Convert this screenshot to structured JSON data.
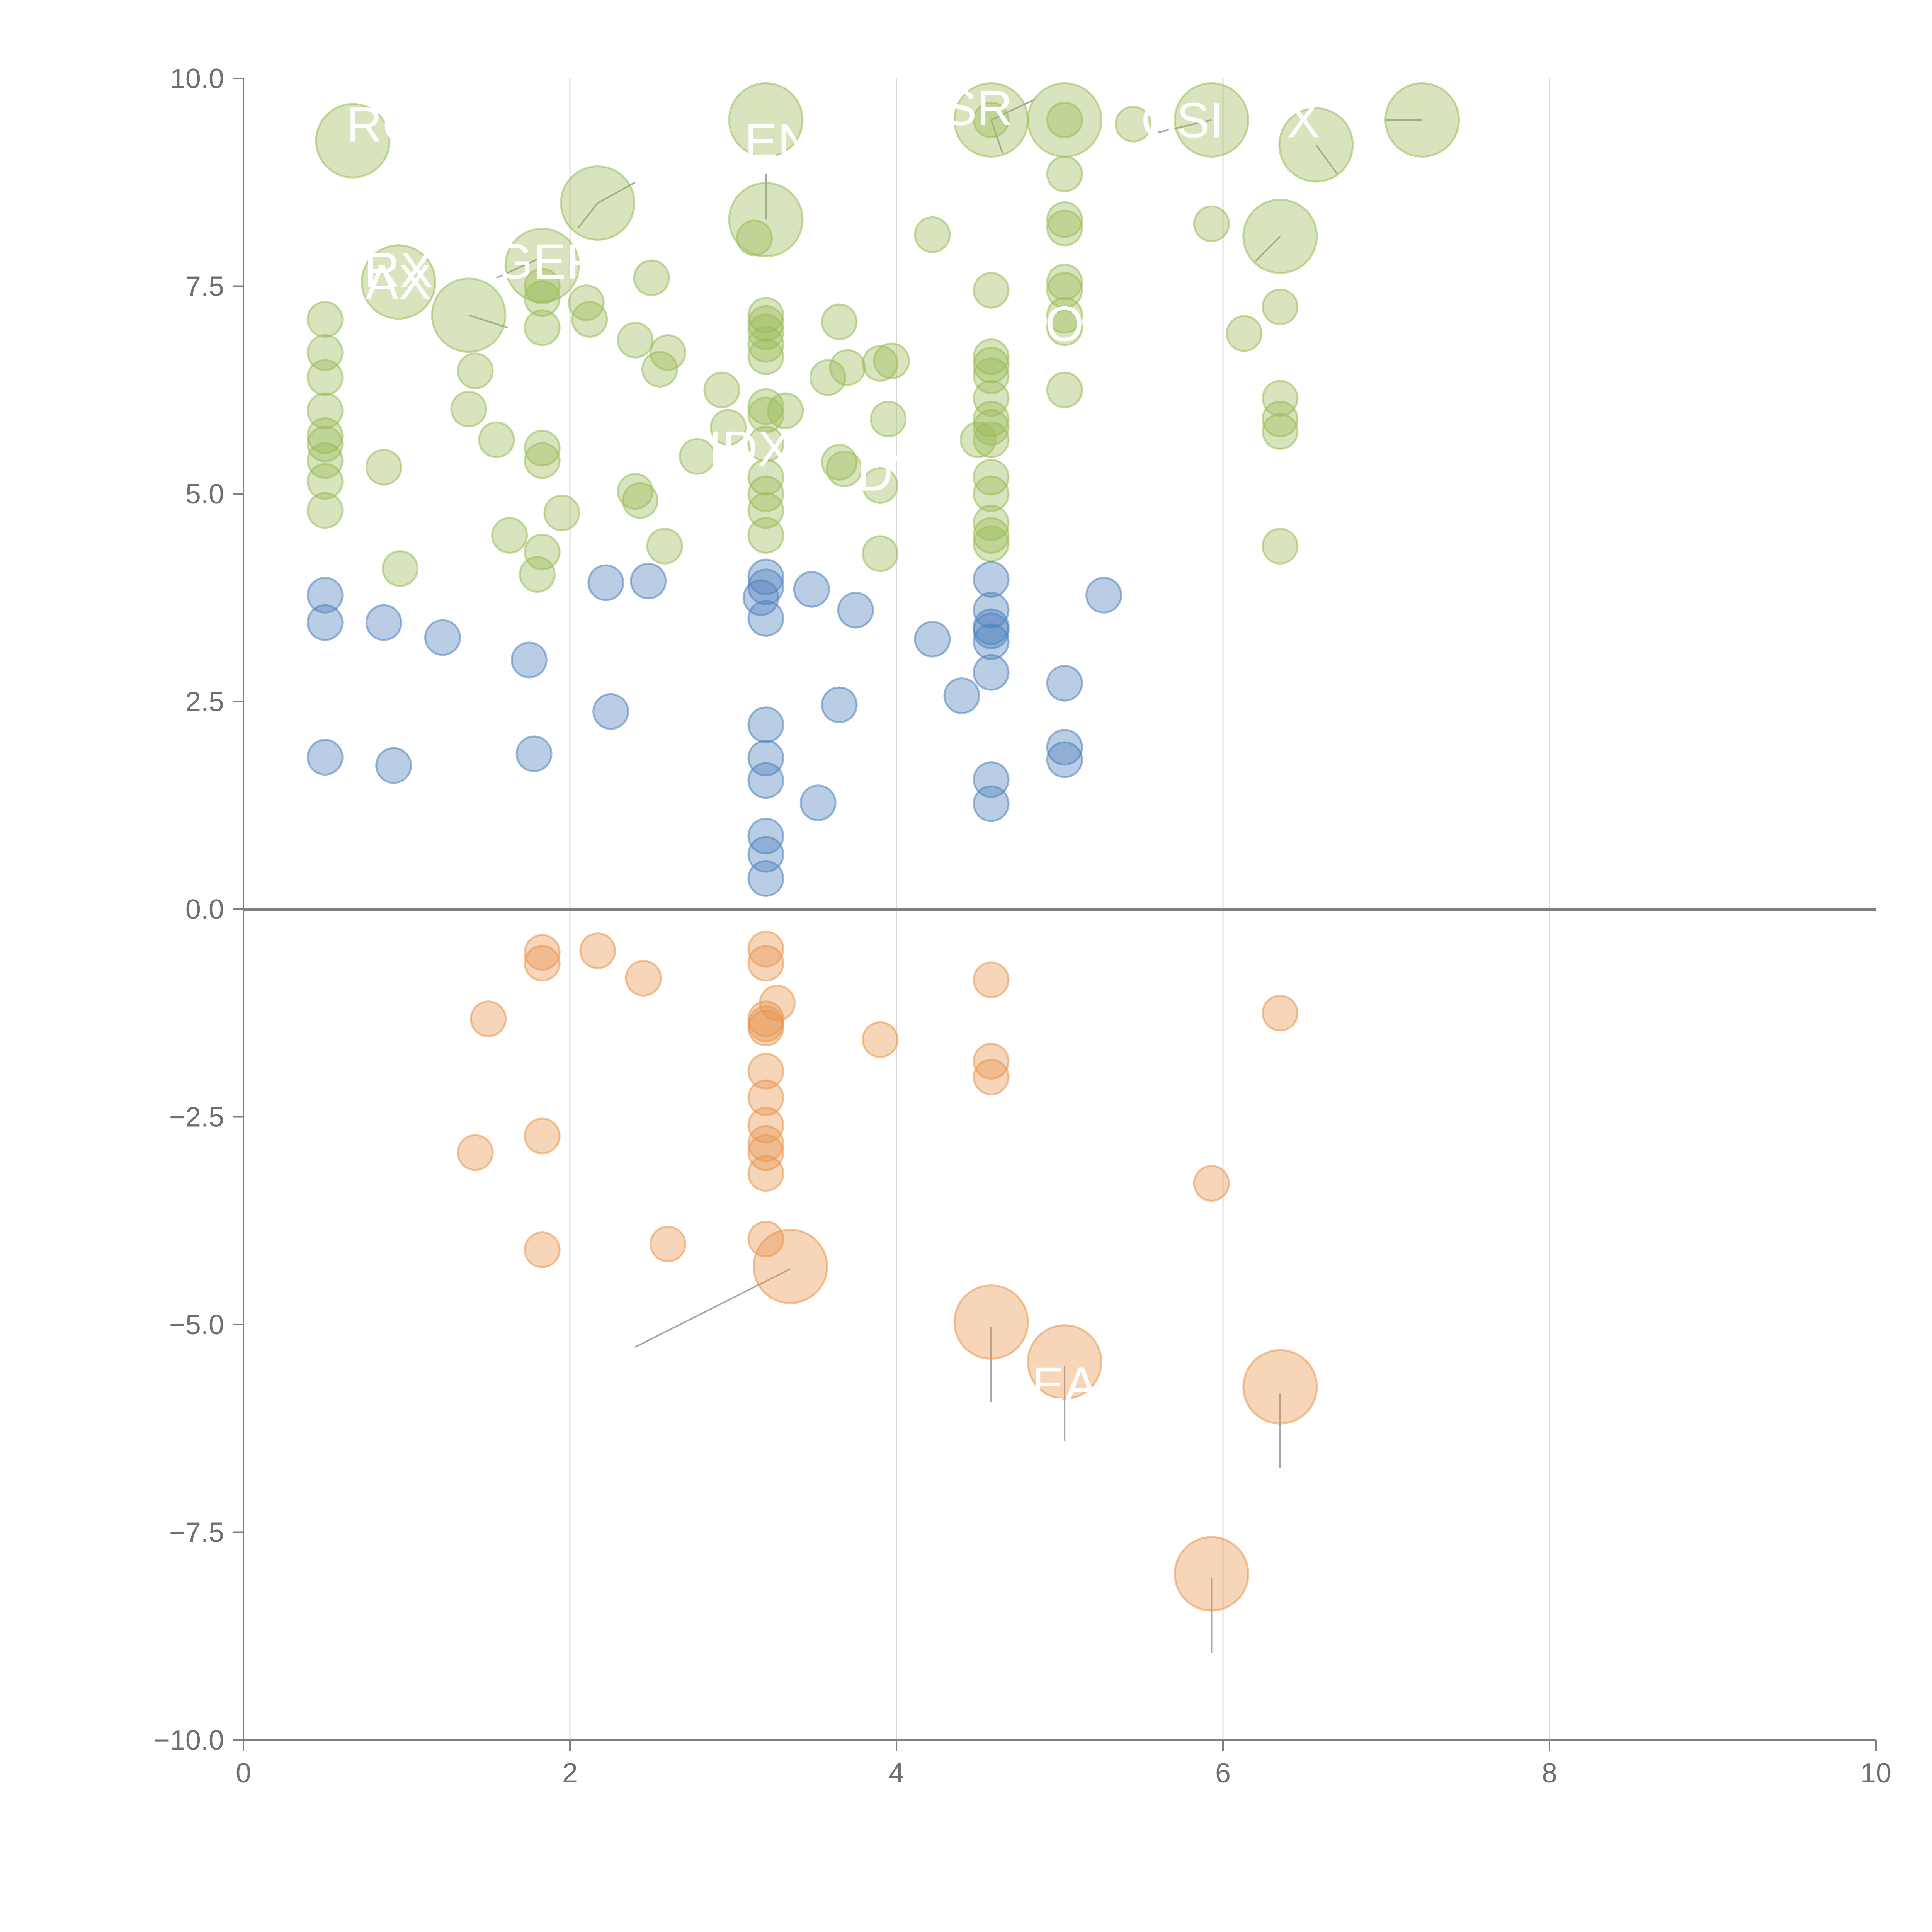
{
  "colors": {
    "green": "#9bbb59",
    "blue": "#4f81bd",
    "orange": "#e8954f",
    "axis": "#7f7f7f",
    "grid": "#d9d9d9",
    "text": "#6f6f6f",
    "label": "#ffffff"
  },
  "chart_data": {
    "type": "scatter",
    "title": "",
    "xlabel": "",
    "ylabel": "",
    "xlim": [
      0,
      10
    ],
    "ylim": [
      -10,
      10
    ],
    "grid": "vertical",
    "xticks": [
      0,
      2,
      4,
      6,
      8,
      10
    ],
    "yticks": [
      10,
      7.5,
      5,
      2.5,
      0,
      -2.5,
      -5,
      -7.5,
      -10
    ],
    "xtick_labels": [
      "0",
      "2",
      "4",
      "6",
      "8",
      "10"
    ],
    "ytick_labels": [
      "10.0",
      "7.5",
      "5.0",
      "2.5",
      "0.0",
      "−2.5",
      "−5.0",
      "−7.5",
      "−10.0"
    ],
    "series": [
      {
        "name": "green",
        "color": "green",
        "points": [
          [
            0.67,
            9.25,
            2
          ],
          [
            0.95,
            7.55,
            2
          ],
          [
            1.38,
            7.15,
            2
          ],
          [
            1.83,
            7.75,
            2
          ],
          [
            2.17,
            8.5,
            2
          ],
          [
            3.2,
            9.5,
            2
          ],
          [
            3.2,
            8.3,
            2
          ],
          [
            4.58,
            9.5,
            2
          ],
          [
            5.03,
            9.5,
            2
          ],
          [
            5.93,
            9.5,
            2
          ],
          [
            6.35,
            8.1,
            2
          ],
          [
            6.57,
            9.2,
            2
          ],
          [
            7.22,
            9.5,
            2
          ],
          [
            5.45,
            9.45,
            1
          ],
          [
            4.58,
            9.5,
            1
          ],
          [
            5.03,
            9.5,
            1
          ],
          [
            5.03,
            8.85,
            1
          ],
          [
            5.03,
            8.3,
            1
          ],
          [
            5.03,
            8.2,
            1
          ],
          [
            5.03,
            7.55,
            1
          ],
          [
            5.03,
            7.45,
            1
          ],
          [
            5.03,
            7.15,
            1
          ],
          [
            5.03,
            7.0,
            1
          ],
          [
            5.03,
            6.25,
            1
          ],
          [
            4.22,
            8.12,
            1
          ],
          [
            5.93,
            8.25,
            1
          ],
          [
            3.13,
            8.08,
            1
          ],
          [
            0.5,
            7.1,
            1
          ],
          [
            0.5,
            6.7,
            1
          ],
          [
            0.5,
            6.4,
            1
          ],
          [
            0.5,
            6.0,
            1
          ],
          [
            0.5,
            5.7,
            1
          ],
          [
            0.5,
            5.6,
            1
          ],
          [
            0.5,
            5.4,
            1
          ],
          [
            0.5,
            5.15,
            1
          ],
          [
            0.5,
            4.8,
            1
          ],
          [
            0.86,
            5.32,
            1
          ],
          [
            0.96,
            4.1,
            1
          ],
          [
            1.38,
            6.02,
            1
          ],
          [
            1.42,
            6.48,
            1
          ],
          [
            1.55,
            5.65,
            1
          ],
          [
            1.63,
            4.5,
            1
          ],
          [
            1.83,
            7.5,
            1
          ],
          [
            1.83,
            7.35,
            1
          ],
          [
            1.83,
            7.0,
            1
          ],
          [
            1.83,
            5.55,
            1
          ],
          [
            1.83,
            5.4,
            1
          ],
          [
            1.83,
            4.3,
            1
          ],
          [
            1.8,
            4.03,
            1
          ],
          [
            1.95,
            4.77,
            1
          ],
          [
            2.1,
            7.3,
            1
          ],
          [
            2.12,
            7.1,
            1
          ],
          [
            2.4,
            6.85,
            1
          ],
          [
            2.5,
            7.6,
            1
          ],
          [
            2.55,
            6.5,
            1
          ],
          [
            2.6,
            6.7,
            1
          ],
          [
            2.58,
            4.37,
            1
          ],
          [
            2.4,
            5.03,
            1
          ],
          [
            2.43,
            4.92,
            1
          ],
          [
            2.93,
            6.25,
            1
          ],
          [
            2.97,
            5.8,
            1
          ],
          [
            2.78,
            5.45,
            1
          ],
          [
            3.2,
            7.15,
            1
          ],
          [
            3.2,
            7.05,
            1
          ],
          [
            3.2,
            6.95,
            1
          ],
          [
            3.2,
            6.8,
            1
          ],
          [
            3.2,
            6.65,
            1
          ],
          [
            3.2,
            6.05,
            1
          ],
          [
            3.2,
            5.95,
            1
          ],
          [
            3.32,
            6.0,
            1
          ],
          [
            3.2,
            5.6,
            1
          ],
          [
            3.2,
            5.2,
            1
          ],
          [
            3.2,
            5.0,
            1
          ],
          [
            3.2,
            4.8,
            1
          ],
          [
            3.2,
            4.5,
            1
          ],
          [
            3.58,
            6.4,
            1
          ],
          [
            3.65,
            7.07,
            1
          ],
          [
            3.7,
            6.52,
            1
          ],
          [
            3.9,
            6.57,
            1
          ],
          [
            3.97,
            6.6,
            1
          ],
          [
            3.95,
            5.9,
            1
          ],
          [
            3.65,
            5.38,
            1
          ],
          [
            3.68,
            5.3,
            1
          ],
          [
            3.9,
            5.1,
            1
          ],
          [
            3.9,
            4.28,
            1
          ],
          [
            4.5,
            5.65,
            1
          ],
          [
            4.58,
            7.45,
            1
          ],
          [
            4.58,
            6.65,
            1
          ],
          [
            4.58,
            6.55,
            1
          ],
          [
            4.58,
            6.42,
            1
          ],
          [
            4.58,
            6.15,
            1
          ],
          [
            4.58,
            5.9,
            1
          ],
          [
            4.58,
            5.8,
            1
          ],
          [
            4.58,
            5.65,
            1
          ],
          [
            4.58,
            5.2,
            1
          ],
          [
            4.58,
            5.0,
            1
          ],
          [
            4.58,
            4.65,
            1
          ],
          [
            4.58,
            4.5,
            1
          ],
          [
            4.58,
            4.4,
            1
          ],
          [
            6.13,
            6.93,
            1
          ],
          [
            6.35,
            7.25,
            1
          ],
          [
            6.35,
            6.15,
            1
          ],
          [
            6.35,
            5.9,
            1
          ],
          [
            6.35,
            5.75,
            1
          ],
          [
            6.35,
            4.37,
            1
          ]
        ]
      },
      {
        "name": "blue",
        "color": "blue",
        "points": [
          [
            0.5,
            3.78,
            1
          ],
          [
            0.5,
            3.45,
            1
          ],
          [
            0.5,
            1.83,
            1
          ],
          [
            0.86,
            3.45,
            1
          ],
          [
            0.92,
            1.73,
            1
          ],
          [
            1.22,
            3.27,
            1
          ],
          [
            1.75,
            3.0,
            1
          ],
          [
            1.78,
            1.87,
            1
          ],
          [
            2.22,
            3.93,
            1
          ],
          [
            2.25,
            2.38,
            1
          ],
          [
            2.48,
            3.95,
            1
          ],
          [
            3.2,
            4.0,
            1
          ],
          [
            3.2,
            3.88,
            1
          ],
          [
            3.17,
            3.75,
            1
          ],
          [
            3.2,
            3.5,
            1
          ],
          [
            3.2,
            2.22,
            1
          ],
          [
            3.2,
            1.82,
            1
          ],
          [
            3.2,
            1.55,
            1
          ],
          [
            3.2,
            0.88,
            1
          ],
          [
            3.2,
            0.66,
            1
          ],
          [
            3.2,
            0.37,
            1
          ],
          [
            3.48,
            3.85,
            1
          ],
          [
            3.52,
            1.28,
            1
          ],
          [
            3.65,
            2.46,
            1
          ],
          [
            3.75,
            3.6,
            1
          ],
          [
            4.22,
            3.25,
            1
          ],
          [
            4.4,
            2.57,
            1
          ],
          [
            4.58,
            3.97,
            1
          ],
          [
            4.58,
            3.6,
            1
          ],
          [
            4.58,
            3.4,
            1
          ],
          [
            4.58,
            3.35,
            1
          ],
          [
            4.58,
            3.22,
            1
          ],
          [
            4.58,
            2.85,
            1
          ],
          [
            4.58,
            1.56,
            1
          ],
          [
            4.58,
            1.27,
            1
          ],
          [
            5.03,
            2.72,
            1
          ],
          [
            5.03,
            1.95,
            1
          ],
          [
            5.03,
            1.8,
            1
          ],
          [
            5.27,
            3.78,
            1
          ]
        ]
      },
      {
        "name": "orange",
        "color": "orange",
        "points": [
          [
            1.5,
            -1.32,
            1
          ],
          [
            1.42,
            -2.93,
            1
          ],
          [
            1.83,
            -0.52,
            1
          ],
          [
            1.83,
            -0.65,
            1
          ],
          [
            1.83,
            -2.73,
            1
          ],
          [
            1.83,
            -4.1,
            1
          ],
          [
            2.17,
            -0.5,
            1
          ],
          [
            2.45,
            -0.83,
            1
          ],
          [
            2.6,
            -4.03,
            1
          ],
          [
            3.2,
            -0.48,
            1
          ],
          [
            3.2,
            -0.65,
            1
          ],
          [
            3.27,
            -1.13,
            1
          ],
          [
            3.2,
            -1.32,
            1
          ],
          [
            3.2,
            -1.38,
            1
          ],
          [
            3.2,
            -1.43,
            1
          ],
          [
            3.2,
            -1.95,
            1
          ],
          [
            3.2,
            -2.27,
            1
          ],
          [
            3.2,
            -2.6,
            1
          ],
          [
            3.2,
            -2.82,
            1
          ],
          [
            3.2,
            -2.93,
            1
          ],
          [
            3.2,
            -3.18,
            1
          ],
          [
            3.2,
            -3.97,
            1
          ],
          [
            3.35,
            -4.3,
            2
          ],
          [
            3.9,
            -1.57,
            1
          ],
          [
            4.58,
            -0.85,
            1
          ],
          [
            4.58,
            -1.83,
            1
          ],
          [
            4.58,
            -2.02,
            1
          ],
          [
            4.58,
            -4.97,
            2
          ],
          [
            5.03,
            -5.45,
            2
          ],
          [
            5.93,
            -3.3,
            1
          ],
          [
            5.93,
            -8.0,
            2
          ],
          [
            6.35,
            -1.25,
            1
          ],
          [
            6.35,
            -5.75,
            2
          ]
        ]
      }
    ],
    "leader_lines": [
      [
        2.4,
        -5.27,
        3.35,
        -4.33
      ],
      [
        4.58,
        -5.03,
        4.58,
        -5.93
      ],
      [
        5.03,
        -5.5,
        5.03,
        -6.4
      ],
      [
        5.93,
        -8.05,
        5.93,
        -8.95
      ],
      [
        6.35,
        -5.83,
        6.35,
        -6.73
      ],
      [
        1.83,
        7.85,
        1.55,
        7.6
      ],
      [
        1.38,
        7.15,
        1.62,
        7.0
      ],
      [
        2.17,
        8.5,
        2.4,
        8.75
      ],
      [
        2.17,
        8.5,
        2.05,
        8.2
      ],
      [
        3.2,
        8.3,
        3.2,
        8.85
      ],
      [
        4.58,
        9.5,
        4.85,
        9.75
      ],
      [
        4.58,
        9.5,
        4.65,
        9.1
      ],
      [
        5.93,
        9.5,
        5.6,
        9.35
      ],
      [
        6.35,
        8.1,
        6.2,
        7.8
      ],
      [
        6.57,
        9.2,
        6.7,
        8.85
      ],
      [
        7.22,
        9.5,
        7.0,
        9.5
      ]
    ],
    "annotations": [
      {
        "text": "RC",
        "x": 0.85,
        "y": 9.45
      },
      {
        "text": "RX",
        "x": 0.95,
        "y": 7.7
      },
      {
        "text": "AX",
        "x": 0.95,
        "y": 7.55
      },
      {
        "text": "GEF",
        "x": 1.85,
        "y": 7.8
      },
      {
        "text": "EN",
        "x": 3.28,
        "y": 9.25
      },
      {
        "text": "SR",
        "x": 4.5,
        "y": 9.65
      },
      {
        "text": "CSI",
        "x": 5.75,
        "y": 9.5
      },
      {
        "text": "TX",
        "x": 6.4,
        "y": 9.5
      },
      {
        "text": "O",
        "x": 5.03,
        "y": 7.05
      },
      {
        "text": "IDX",
        "x": 3.1,
        "y": 5.55
      },
      {
        "text": "DY",
        "x": 3.97,
        "y": 5.25
      },
      {
        "text": "EA",
        "x": 5.03,
        "y": -5.72
      }
    ]
  }
}
